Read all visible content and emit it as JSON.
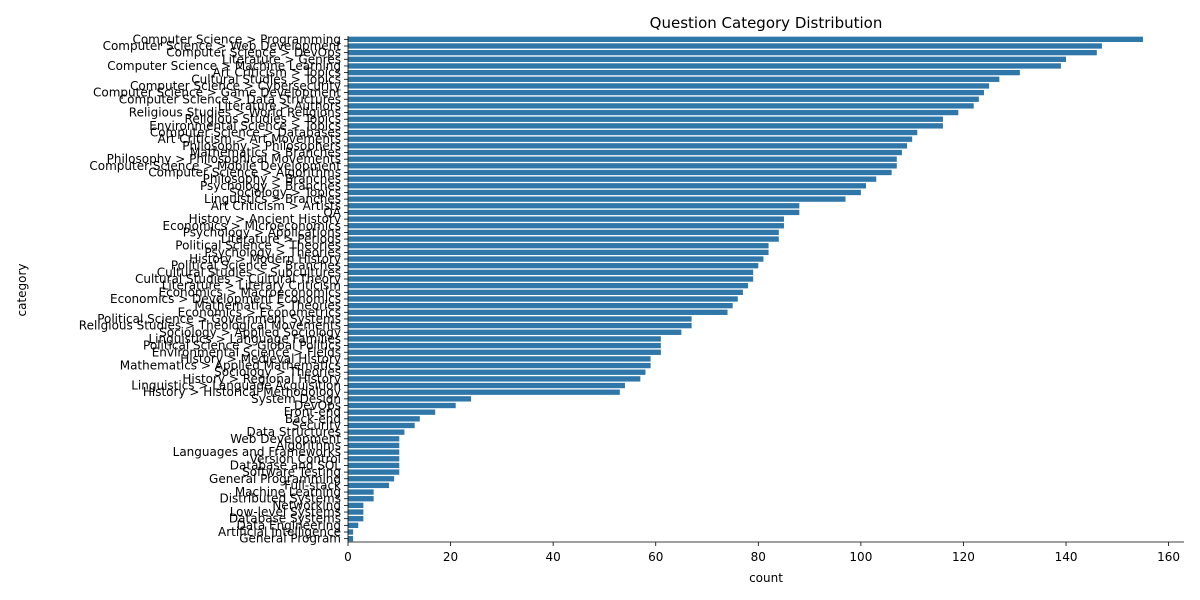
{
  "chart_data": {
    "type": "bar",
    "orientation": "horizontal",
    "title": "Question Category Distribution",
    "xlabel": "count",
    "ylabel": "category",
    "xlim": [
      0,
      163
    ],
    "xticks": [
      0,
      20,
      40,
      60,
      80,
      100,
      120,
      140,
      160
    ],
    "bar_color": "#2f77a8",
    "grid": false,
    "categories": [
      "Computer Science > Programming",
      "Computer Science > Web Development",
      "Computer Science > DevOps",
      "Literature > Genres",
      "Computer Science > Machine Learning",
      "Art Criticism > Topics",
      "Cultural Studies > Topics",
      "Computer Science > Cybersecurity",
      "Computer Science > Game Development",
      "Computer Science > Data Structures",
      "Literature > Authors",
      "Religious Studies > World Religions",
      "Religious Studies > Topics",
      "Environmental Science > Topics",
      "Computer Science > Databases",
      "Art Criticism > Art Movements",
      "Philosophy > Philosophers",
      "Mathematics > Branches",
      "Philosophy > Philosophical Movements",
      "Computer Science > Mobile Development",
      "Computer Science > Algorithms",
      "Philosophy > Branches",
      "Psychology > Branches",
      "Sociology > Topics",
      "Linguistics > Branches",
      "Art Criticism > Artists",
      "QA",
      "History > Ancient History",
      "Economics > Microeconomics",
      "Psychology > Applications",
      "Literature > Periods",
      "Political Science > Theories",
      "Psychology > Theories",
      "History > Modern History",
      "Political Science > Branches",
      "Cultural Studies > Subcultures",
      "Cultural Studies > Cultural Theory",
      "Literature > Literary Criticism",
      "Economics > Macroeconomics",
      "Economics > Development Economics",
      "Mathematics > Theories",
      "Economics > Econometrics",
      "Political Science > Government Systems",
      "Religious Studies > Theological Movements",
      "Sociology > Applied Sociology",
      "Linguistics > Language Families",
      "Political Science > Global Politics",
      "Environmental Science > Fields",
      "History > Medieval History",
      "Mathematics > Applied Mathematics",
      "Sociology > Theories",
      "History > Regional History",
      "Linguistics > Language Acquisition",
      "History > Historical Methodology",
      "System Design",
      "DevOps",
      "Front-end",
      "Back-end",
      "Security",
      "Data Structures",
      "Web Development",
      "Algorithms",
      "Languages and Frameworks",
      "Version Control",
      "Database and SQL",
      "Software Testing",
      "General Programming",
      "Full-stack",
      "Machine Learning",
      "Distributed Systems",
      "Networking",
      "Low-level Systems",
      "Database Systems",
      "Data Engineering",
      "Artificial Intelligence",
      "General Program"
    ],
    "values": [
      155,
      147,
      146,
      140,
      139,
      131,
      127,
      125,
      124,
      123,
      122,
      119,
      116,
      116,
      111,
      110,
      109,
      108,
      107,
      107,
      106,
      103,
      101,
      100,
      97,
      88,
      88,
      85,
      85,
      84,
      84,
      82,
      82,
      81,
      80,
      79,
      79,
      78,
      77,
      76,
      75,
      74,
      67,
      67,
      65,
      61,
      61,
      61,
      59,
      59,
      58,
      57,
      54,
      53,
      24,
      21,
      17,
      14,
      13,
      11,
      10,
      10,
      10,
      10,
      10,
      10,
      9,
      8,
      5,
      5,
      3,
      3,
      3,
      2,
      1,
      1
    ]
  }
}
